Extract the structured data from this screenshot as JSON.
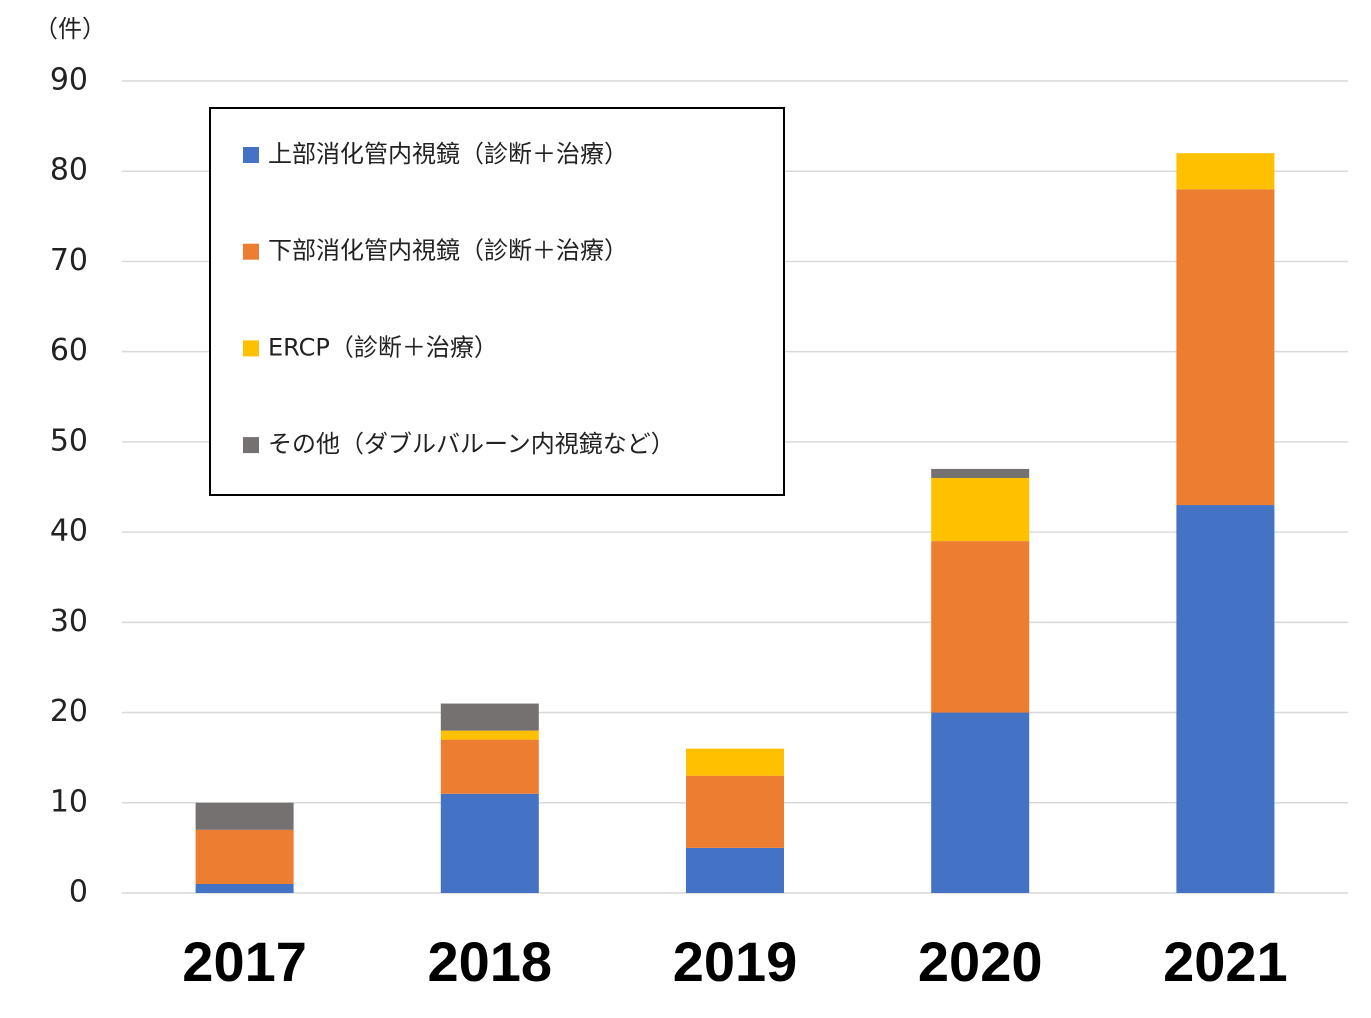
{
  "chart_data": {
    "type": "stacked_bar",
    "y_axis_label": "（件）",
    "categories": [
      "2017",
      "2018",
      "2019",
      "2020",
      "2021"
    ],
    "series": [
      {
        "name": "上部消化管内視鏡（診断＋治療）",
        "color": "#4472c4",
        "values": [
          1,
          11,
          5,
          20,
          43
        ]
      },
      {
        "name": "下部消化管内視鏡（診断＋治療）",
        "color": "#ed7d31",
        "values": [
          6,
          6,
          8,
          19,
          35
        ]
      },
      {
        "name": "ERCP（診断＋治療）",
        "color": "#ffc000",
        "values": [
          0,
          1,
          3,
          7,
          4
        ]
      },
      {
        "name": "その他（ダブルバルーン内視鏡など）",
        "color": "#767171",
        "values": [
          3,
          3,
          0,
          1,
          0
        ]
      }
    ],
    "ylim": [
      0,
      90
    ],
    "yticks": [
      0,
      10,
      20,
      30,
      40,
      50,
      60,
      70,
      80,
      90
    ],
    "grid": true,
    "legend": "top-left"
  }
}
